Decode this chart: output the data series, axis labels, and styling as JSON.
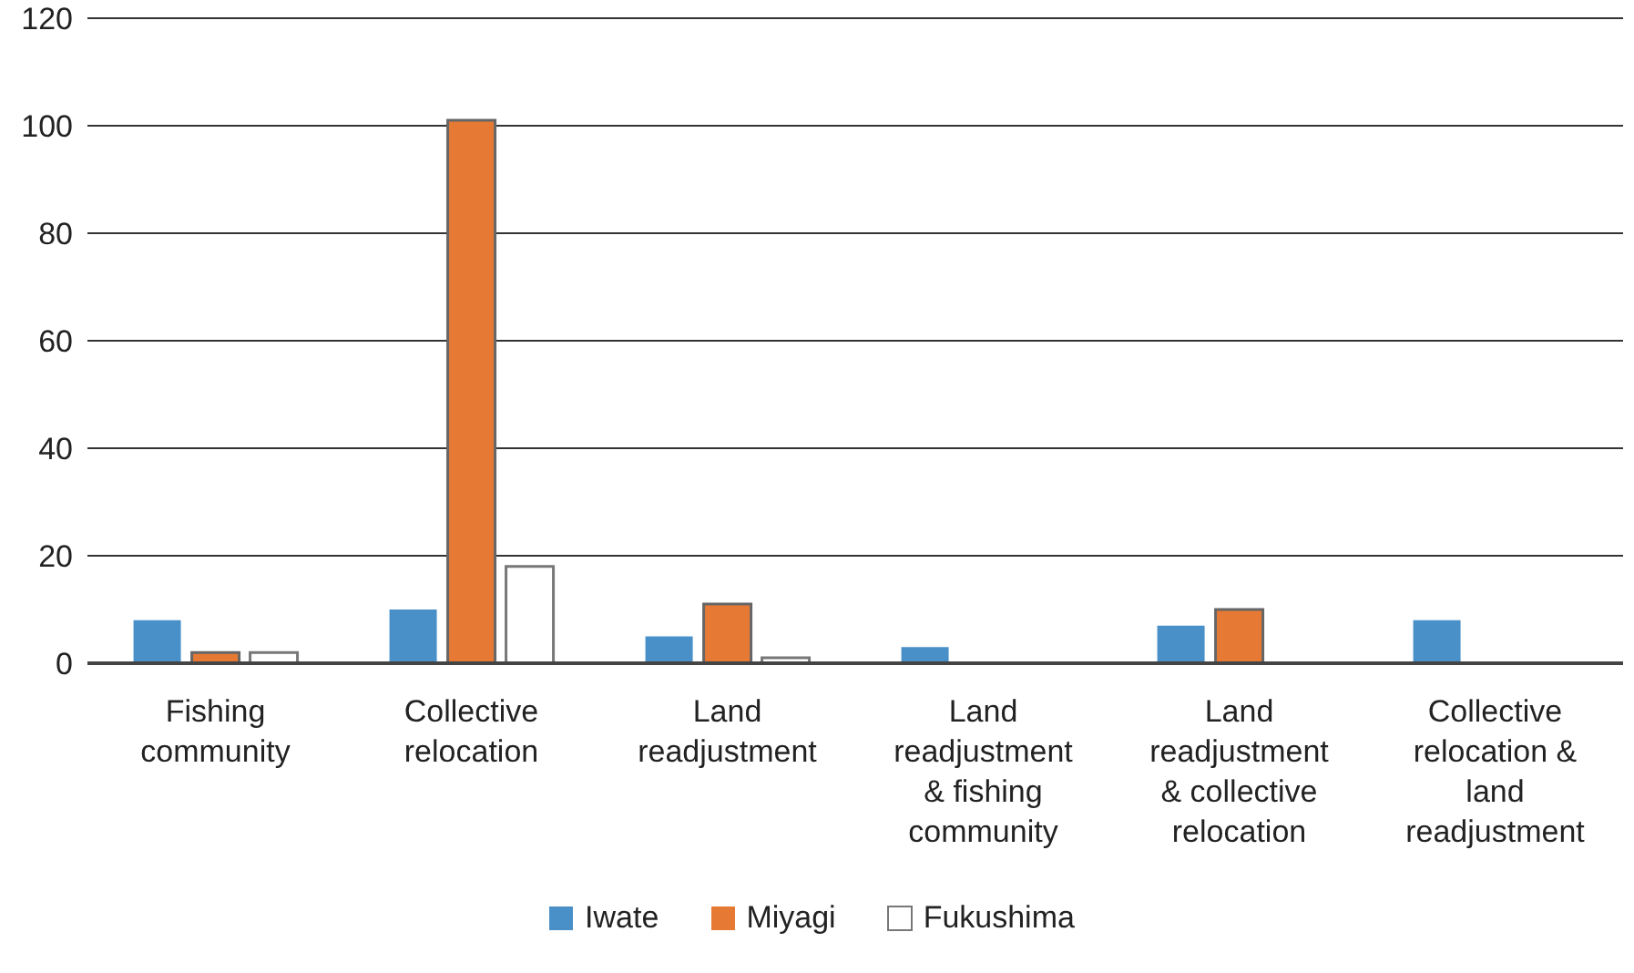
{
  "chart_data": {
    "type": "bar",
    "categories": [
      "Fishing community",
      "Collective relocation",
      "Land readjustment",
      "Land readjustment & fishing community",
      "Land readjustment & collective relocation",
      "Collective relocation & land readjustment"
    ],
    "series": [
      {
        "name": "Iwate",
        "color": "#4a90c8",
        "values": [
          8,
          10,
          5,
          3,
          7,
          8
        ]
      },
      {
        "name": "Miyagi",
        "color": "#e67a35",
        "values": [
          2,
          101,
          11,
          null,
          10,
          null
        ]
      },
      {
        "name": "Fukushima",
        "color": "#ffffff",
        "values": [
          2,
          18,
          1,
          null,
          null,
          null
        ]
      }
    ],
    "ylim": [
      0,
      120
    ],
    "yticks": [
      0,
      20,
      40,
      60,
      80,
      100,
      120
    ],
    "grid": "y",
    "legend": "bottom"
  }
}
